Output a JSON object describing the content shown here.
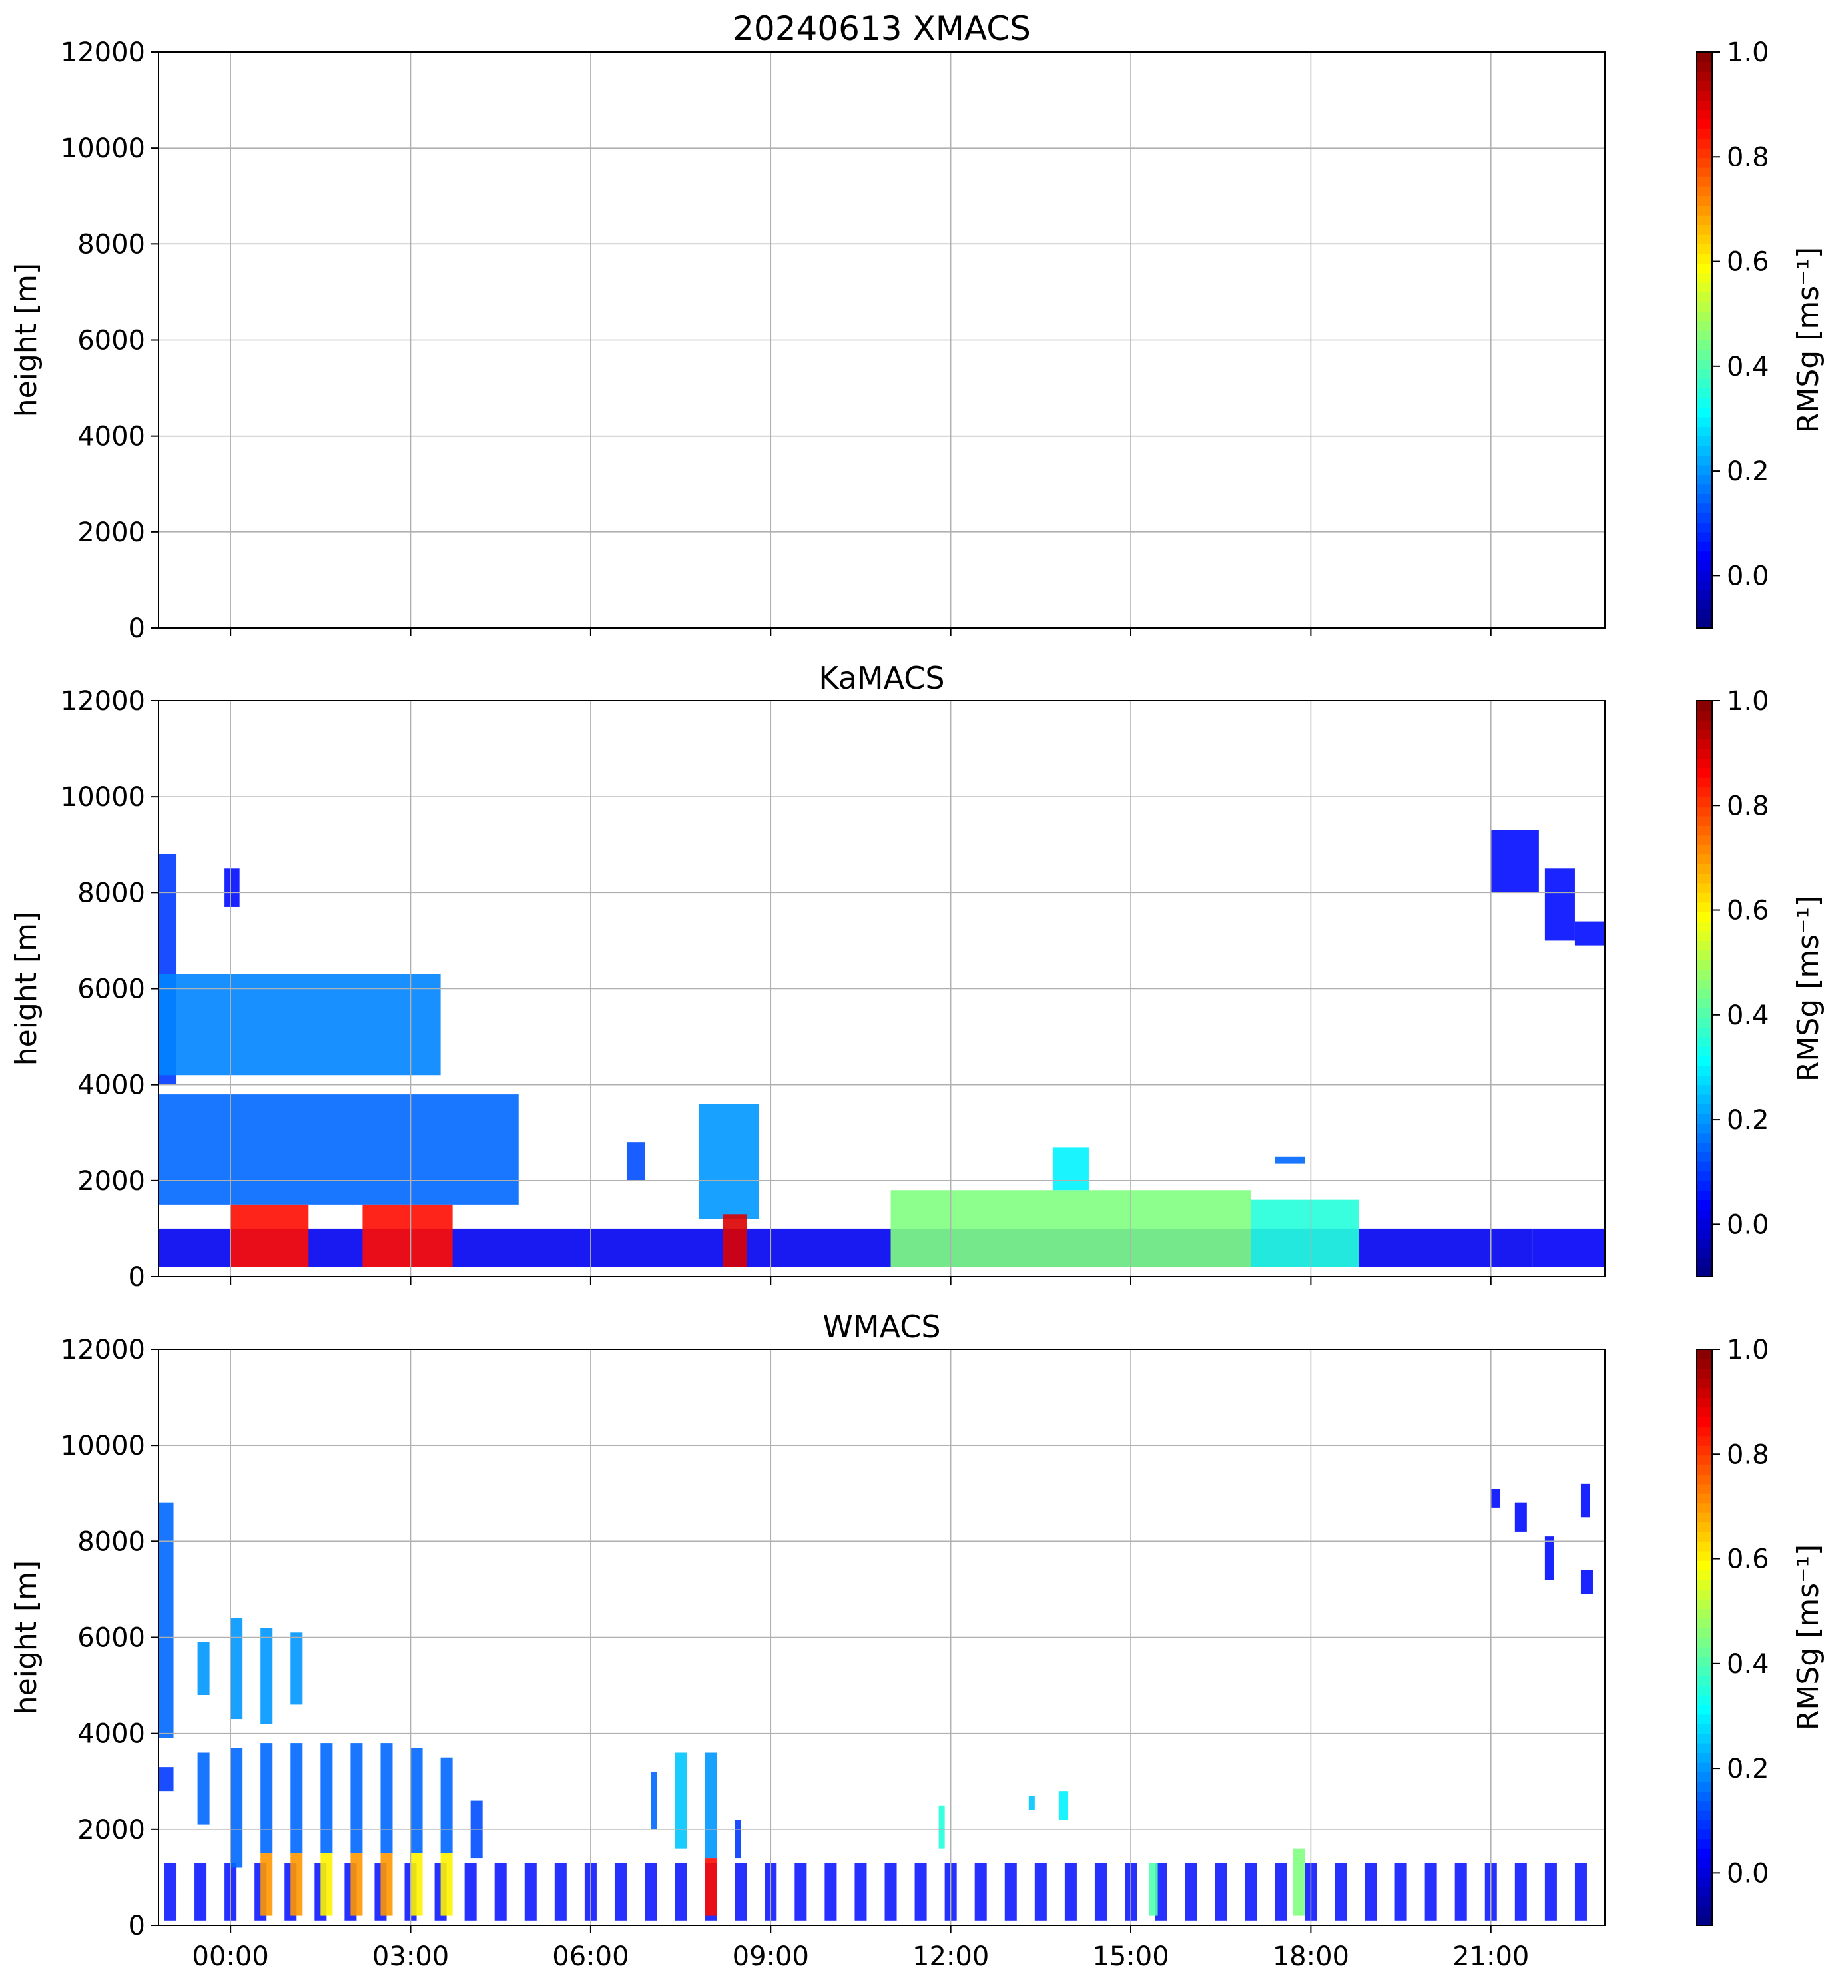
{
  "chart_data": [
    {
      "type": "heatmap",
      "title": "20240613 XMACS",
      "ylabel": "height [m]",
      "ylim": [
        0,
        12000
      ],
      "yticks": [
        "0",
        "2000",
        "4000",
        "6000",
        "8000",
        "10000",
        "12000"
      ],
      "xlim_hours": [
        -1.2,
        22.9
      ],
      "xticks_hours": [
        0,
        3,
        6,
        9,
        12,
        15,
        18,
        21
      ],
      "xtick_labels": [],
      "grid": true,
      "colorbar": {
        "label": "RMSg [ms⁻¹]",
        "range": [
          -0.1,
          1.0
        ],
        "ticks": [
          "0.0",
          "0.2",
          "0.4",
          "0.6",
          "0.8",
          "1.0"
        ],
        "colormap": "jet"
      },
      "regions": []
    },
    {
      "type": "heatmap",
      "title": "KaMACS",
      "ylabel": "height [m]",
      "ylim": [
        0,
        12000
      ],
      "yticks": [
        "0",
        "2000",
        "4000",
        "6000",
        "8000",
        "10000",
        "12000"
      ],
      "xlim_hours": [
        -1.2,
        22.9
      ],
      "xticks_hours": [
        0,
        3,
        6,
        9,
        12,
        15,
        18,
        21
      ],
      "xtick_labels": [],
      "grid": true,
      "colorbar": {
        "label": "RMSg [ms⁻¹]",
        "range": [
          -0.1,
          1.0
        ],
        "ticks": [
          "0.0",
          "0.2",
          "0.4",
          "0.6",
          "0.8",
          "1.0"
        ],
        "colormap": "jet"
      },
      "regions": [
        {
          "t0": -1.2,
          "t1": 21.7,
          "h0": 200,
          "h1": 1000,
          "v": 0.02
        },
        {
          "t0": 21.7,
          "t1": 22.9,
          "h0": 200,
          "h1": 1000,
          "v": 0.03
        },
        {
          "t0": -1.2,
          "t1": -0.9,
          "h0": 4000,
          "h1": 8800,
          "v": 0.1
        },
        {
          "t0": -1.2,
          "t1": 3.5,
          "h0": 4200,
          "h1": 6300,
          "v": 0.18
        },
        {
          "t0": -1.2,
          "t1": 4.8,
          "h0": 1500,
          "h1": 3800,
          "v": 0.15
        },
        {
          "t0": 0.0,
          "t1": 1.3,
          "h0": 200,
          "h1": 1500,
          "v": 0.85
        },
        {
          "t0": 2.2,
          "t1": 3.7,
          "h0": 200,
          "h1": 1500,
          "v": 0.85
        },
        {
          "t0": 6.6,
          "t1": 6.9,
          "h0": 2000,
          "h1": 2800,
          "v": 0.12
        },
        {
          "t0": 7.8,
          "t1": 8.8,
          "h0": 1200,
          "h1": 3600,
          "v": 0.2
        },
        {
          "t0": 8.2,
          "t1": 8.6,
          "h0": 200,
          "h1": 1300,
          "v": 0.9
        },
        {
          "t0": 11.0,
          "t1": 17.0,
          "h0": 200,
          "h1": 1800,
          "v": 0.45
        },
        {
          "t0": 17.0,
          "t1": 18.8,
          "h0": 200,
          "h1": 1600,
          "v": 0.35
        },
        {
          "t0": 13.7,
          "t1": 14.3,
          "h0": 1800,
          "h1": 2700,
          "v": 0.3
        },
        {
          "t0": 17.4,
          "t1": 17.9,
          "h0": 2350,
          "h1": 2500,
          "v": 0.15
        },
        {
          "t0": -0.1,
          "t1": 0.15,
          "h0": 7700,
          "h1": 8500,
          "v": 0.05
        },
        {
          "t0": 21.0,
          "t1": 21.8,
          "h0": 8000,
          "h1": 9300,
          "v": 0.05
        },
        {
          "t0": 21.9,
          "t1": 22.4,
          "h0": 7000,
          "h1": 8500,
          "v": 0.05
        },
        {
          "t0": 22.4,
          "t1": 22.9,
          "h0": 6900,
          "h1": 7400,
          "v": 0.05
        }
      ]
    },
    {
      "type": "heatmap",
      "title": "WMACS",
      "ylabel": "height [m]",
      "ylim": [
        0,
        12000
      ],
      "yticks": [
        "0",
        "2000",
        "4000",
        "6000",
        "8000",
        "10000",
        "12000"
      ],
      "xlim_hours": [
        -1.2,
        22.9
      ],
      "xticks_hours": [
        0,
        3,
        6,
        9,
        12,
        15,
        18,
        21
      ],
      "xtick_labels": [
        "00:00",
        "03:00",
        "06:00",
        "09:00",
        "12:00",
        "15:00",
        "18:00",
        "21:00"
      ],
      "grid": true,
      "colorbar": {
        "label": "RMSg [ms⁻¹]",
        "range": [
          -0.1,
          1.0
        ],
        "ticks": [
          "0.0",
          "0.2",
          "0.4",
          "0.6",
          "0.8",
          "1.0"
        ],
        "colormap": "jet"
      },
      "regions": [
        {
          "t0": -1.2,
          "t1": -0.95,
          "h0": 3900,
          "h1": 8800,
          "v": 0.15
        },
        {
          "t0": -1.2,
          "t1": -0.95,
          "h0": 2800,
          "h1": 3300,
          "v": 0.1
        },
        {
          "t0": -0.55,
          "t1": -0.35,
          "h0": 2100,
          "h1": 3600,
          "v": 0.15
        },
        {
          "t0": -0.55,
          "t1": -0.35,
          "h0": 4800,
          "h1": 5900,
          "v": 0.2
        },
        {
          "t0": 0.0,
          "t1": 0.2,
          "h0": 1200,
          "h1": 3700,
          "v": 0.15
        },
        {
          "t0": 0.0,
          "t1": 0.2,
          "h0": 4300,
          "h1": 6400,
          "v": 0.2
        },
        {
          "t0": 0.5,
          "t1": 0.7,
          "h0": 1500,
          "h1": 3800,
          "v": 0.15
        },
        {
          "t0": 0.5,
          "t1": 0.7,
          "h0": 200,
          "h1": 1500,
          "v": 0.7
        },
        {
          "t0": 0.5,
          "t1": 0.7,
          "h0": 4200,
          "h1": 6200,
          "v": 0.2
        },
        {
          "t0": 1.0,
          "t1": 1.2,
          "h0": 1500,
          "h1": 3800,
          "v": 0.15
        },
        {
          "t0": 1.0,
          "t1": 1.2,
          "h0": 200,
          "h1": 1500,
          "v": 0.7
        },
        {
          "t0": 1.0,
          "t1": 1.2,
          "h0": 4600,
          "h1": 6100,
          "v": 0.2
        },
        {
          "t0": 1.5,
          "t1": 1.7,
          "h0": 1500,
          "h1": 3800,
          "v": 0.15
        },
        {
          "t0": 1.5,
          "t1": 1.7,
          "h0": 200,
          "h1": 1500,
          "v": 0.6
        },
        {
          "t0": 2.0,
          "t1": 2.2,
          "h0": 1500,
          "h1": 3800,
          "v": 0.15
        },
        {
          "t0": 2.0,
          "t1": 2.2,
          "h0": 200,
          "h1": 1500,
          "v": 0.7
        },
        {
          "t0": 2.5,
          "t1": 2.7,
          "h0": 1500,
          "h1": 3800,
          "v": 0.15
        },
        {
          "t0": 2.5,
          "t1": 2.7,
          "h0": 200,
          "h1": 1500,
          "v": 0.7
        },
        {
          "t0": 3.0,
          "t1": 3.2,
          "h0": 1500,
          "h1": 3700,
          "v": 0.15
        },
        {
          "t0": 3.0,
          "t1": 3.2,
          "h0": 200,
          "h1": 1500,
          "v": 0.6
        },
        {
          "t0": 3.5,
          "t1": 3.7,
          "h0": 1500,
          "h1": 3500,
          "v": 0.15
        },
        {
          "t0": 3.5,
          "t1": 3.7,
          "h0": 200,
          "h1": 1500,
          "v": 0.6
        },
        {
          "t0": 4.0,
          "t1": 4.2,
          "h0": 1400,
          "h1": 2600,
          "v": 0.12
        },
        {
          "t0": 7.0,
          "t1": 7.1,
          "h0": 2000,
          "h1": 3200,
          "v": 0.15
        },
        {
          "t0": 7.4,
          "t1": 7.6,
          "h0": 1600,
          "h1": 3600,
          "v": 0.25
        },
        {
          "t0": 7.9,
          "t1": 8.1,
          "h0": 1400,
          "h1": 3600,
          "v": 0.2
        },
        {
          "t0": 7.9,
          "t1": 8.1,
          "h0": 200,
          "h1": 1400,
          "v": 0.85
        },
        {
          "t0": 8.4,
          "t1": 8.5,
          "h0": 1400,
          "h1": 2200,
          "v": 0.1
        },
        {
          "t0": 11.8,
          "t1": 11.9,
          "h0": 1600,
          "h1": 2500,
          "v": 0.35
        },
        {
          "t0": 15.3,
          "t1": 15.45,
          "h0": 200,
          "h1": 1300,
          "v": 0.4
        },
        {
          "t0": 17.7,
          "t1": 17.9,
          "h0": 200,
          "h1": 1600,
          "v": 0.45
        },
        {
          "t0": 13.3,
          "t1": 13.4,
          "h0": 2400,
          "h1": 2700,
          "v": 0.25
        },
        {
          "t0": 13.8,
          "t1": 13.95,
          "h0": 2200,
          "h1": 2800,
          "v": 0.3
        },
        {
          "t0": 21.0,
          "t1": 21.15,
          "h0": 8700,
          "h1": 9100,
          "v": 0.05
        },
        {
          "t0": 21.4,
          "t1": 21.6,
          "h0": 8200,
          "h1": 8800,
          "v": 0.05
        },
        {
          "t0": 21.9,
          "t1": 22.05,
          "h0": 7200,
          "h1": 8100,
          "v": 0.05
        },
        {
          "t0": 22.5,
          "t1": 22.65,
          "h0": 8500,
          "h1": 9200,
          "v": 0.05
        },
        {
          "t0": 22.5,
          "t1": 22.7,
          "h0": 6900,
          "h1": 7400,
          "v": 0.05
        }
      ],
      "low_level_stripes": {
        "t0": -1.2,
        "t1": 22.9,
        "period_hours": 0.5,
        "width_hours": 0.2,
        "h0": 100,
        "h1": 1300,
        "v": 0.05
      }
    }
  ]
}
